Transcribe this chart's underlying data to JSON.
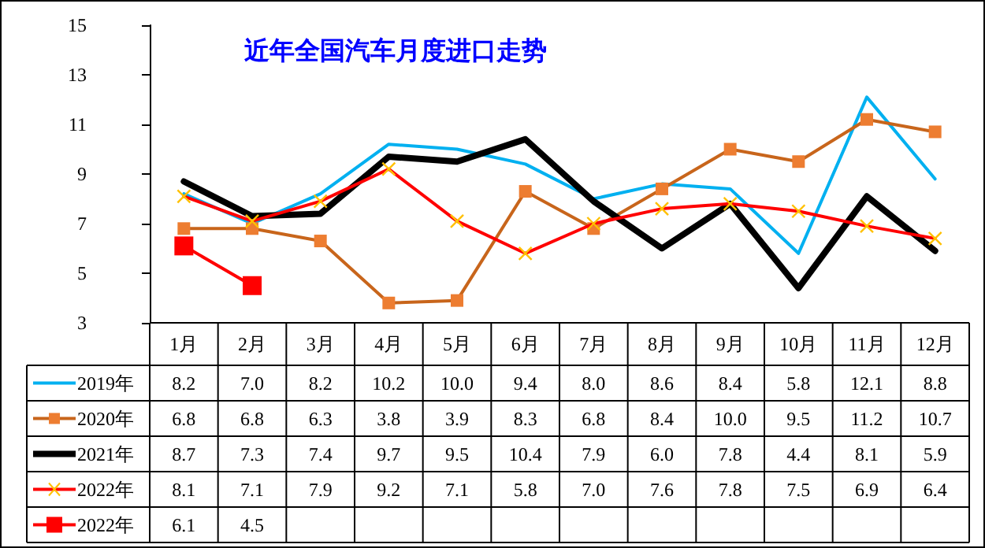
{
  "chart_data": {
    "type": "line",
    "title": "近年全国汽车月度进口走势",
    "categories": [
      "1月",
      "2月",
      "3月",
      "4月",
      "5月",
      "6月",
      "7月",
      "8月",
      "9月",
      "10月",
      "11月",
      "12月"
    ],
    "series": [
      {
        "name": "2019年",
        "color": "#00b0f0",
        "marker": "none",
        "values": [
          8.2,
          7.0,
          8.2,
          10.2,
          10.0,
          9.4,
          8.0,
          8.6,
          8.4,
          5.8,
          12.1,
          8.8
        ],
        "value_labels": [
          "8.2",
          "7.0",
          "8.2",
          "10.2",
          "10.0",
          "9.4",
          "8.0",
          "8.6",
          "8.4",
          "5.8",
          "12.1",
          "8.8"
        ]
      },
      {
        "name": "2020年",
        "color": "#c8651b",
        "marker": "square",
        "values": [
          6.8,
          6.8,
          6.3,
          3.8,
          3.9,
          8.3,
          6.8,
          8.4,
          10.0,
          9.5,
          11.2,
          10.7
        ],
        "value_labels": [
          "6.8",
          "6.8",
          "6.3",
          "3.8",
          "3.9",
          "8.3",
          "6.8",
          "8.4",
          "10.0",
          "9.5",
          "11.2",
          "10.7"
        ]
      },
      {
        "name": "2021年",
        "color": "#000000",
        "marker": "none",
        "values": [
          8.7,
          7.3,
          7.4,
          9.7,
          9.5,
          10.4,
          7.9,
          6.0,
          7.8,
          4.4,
          8.1,
          5.9
        ],
        "value_labels": [
          "8.7",
          "7.3",
          "7.4",
          "9.7",
          "9.5",
          "10.4",
          "7.9",
          "6.0",
          "7.8",
          "4.4",
          "8.1",
          "5.9"
        ]
      },
      {
        "name": "2022年",
        "color": "#ff0000",
        "marker": "cross",
        "values": [
          8.1,
          7.1,
          7.9,
          9.2,
          7.1,
          5.8,
          7.0,
          7.6,
          7.8,
          7.5,
          6.9,
          6.4
        ],
        "value_labels": [
          "8.1",
          "7.1",
          "7.9",
          "9.2",
          "7.1",
          "5.8",
          "7.0",
          "7.6",
          "7.8",
          "7.5",
          "6.9",
          "6.4"
        ]
      },
      {
        "name": "2022年",
        "color": "#ff0000",
        "marker": "square",
        "values": [
          6.1,
          4.5,
          null,
          null,
          null,
          null,
          null,
          null,
          null,
          null,
          null,
          null
        ],
        "value_labels": [
          "6.1",
          "4.5",
          null,
          null,
          null,
          null,
          null,
          null,
          null,
          null,
          null,
          null
        ]
      }
    ],
    "ylim": [
      3,
      15
    ],
    "yticks": [
      3,
      5,
      7,
      9,
      11,
      13,
      15
    ],
    "grid": false,
    "legend": "bottom"
  }
}
